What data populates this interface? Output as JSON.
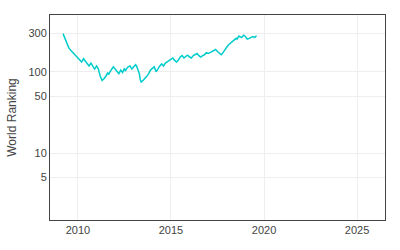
{
  "chart_data": {
    "type": "line",
    "ylabel": "World Ranking",
    "x": [
      2009.2,
      2009.35,
      2009.5,
      2009.6,
      2009.7,
      2009.8,
      2009.9,
      2010.0,
      2010.1,
      2010.2,
      2010.3,
      2010.4,
      2010.5,
      2010.6,
      2010.7,
      2010.8,
      2010.9,
      2011.0,
      2011.1,
      2011.2,
      2011.25,
      2011.3,
      2011.4,
      2011.5,
      2011.6,
      2011.65,
      2011.7,
      2011.8,
      2011.9,
      2012.0,
      2012.1,
      2012.2,
      2012.3,
      2012.4,
      2012.5,
      2012.55,
      2012.6,
      2012.7,
      2012.8,
      2012.9,
      2013.0,
      2013.1,
      2013.15,
      2013.2,
      2013.3,
      2013.35,
      2013.4,
      2013.5,
      2013.6,
      2013.7,
      2013.8,
      2013.9,
      2014.0,
      2014.1,
      2014.2,
      2014.3,
      2014.4,
      2014.5,
      2014.6,
      2014.7,
      2014.8,
      2014.9,
      2015.0,
      2015.1,
      2015.2,
      2015.3,
      2015.4,
      2015.45,
      2015.5,
      2015.6,
      2015.65,
      2015.7,
      2015.8,
      2015.9,
      2016.0,
      2016.1,
      2016.2,
      2016.3,
      2016.4,
      2016.5,
      2016.6,
      2016.7,
      2016.8,
      2016.9,
      2017.0,
      2017.1,
      2017.2,
      2017.3,
      2017.4,
      2017.5,
      2017.6,
      2017.7,
      2017.8,
      2017.9,
      2018.0,
      2018.1,
      2018.2,
      2018.3,
      2018.4,
      2018.5,
      2018.55,
      2018.6,
      2018.65,
      2018.7,
      2018.8,
      2018.9,
      2019.0,
      2019.05,
      2019.1,
      2019.2,
      2019.3,
      2019.4,
      2019.5,
      2019.6
    ],
    "values": [
      295,
      240,
      200,
      185,
      175,
      165,
      160,
      148,
      140,
      132,
      145,
      135,
      125,
      118,
      128,
      115,
      108,
      118,
      108,
      88,
      82,
      78,
      82,
      88,
      98,
      92,
      98,
      108,
      115,
      108,
      100,
      95,
      105,
      98,
      110,
      102,
      108,
      115,
      118,
      108,
      115,
      122,
      118,
      108,
      95,
      80,
      75,
      78,
      82,
      88,
      95,
      105,
      110,
      115,
      100,
      110,
      118,
      125,
      118,
      128,
      132,
      138,
      142,
      148,
      138,
      132,
      140,
      148,
      152,
      158,
      152,
      148,
      155,
      160,
      152,
      148,
      158,
      162,
      168,
      158,
      152,
      158,
      162,
      172,
      168,
      172,
      178,
      182,
      188,
      178,
      168,
      162,
      172,
      188,
      202,
      215,
      225,
      235,
      248,
      258,
      252,
      262,
      275,
      270,
      265,
      282,
      272,
      260,
      252,
      258,
      268,
      272,
      265,
      278
    ],
    "color": "#00CCCC",
    "xlim": [
      2008.5,
      2026.5
    ],
    "ylim": [
      1.5,
      500
    ],
    "xticks": [
      2010,
      2015,
      2020,
      2025
    ],
    "yticks": [
      5,
      10,
      50,
      100,
      300
    ],
    "log": "y",
    "grid": true
  }
}
